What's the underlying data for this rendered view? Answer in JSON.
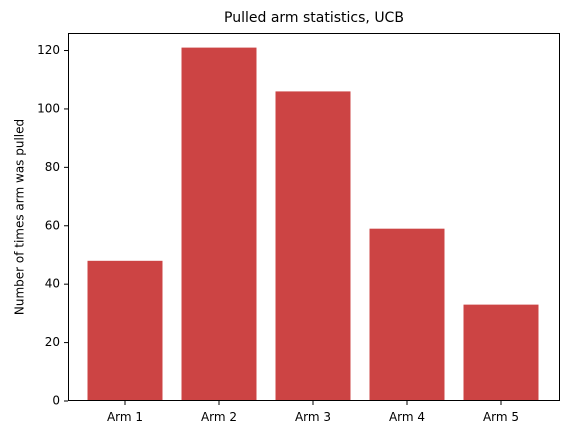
{
  "chart_data": {
    "type": "bar",
    "title": "Pulled arm statistics, UCB",
    "xlabel": "",
    "ylabel": "Number of times arm was pulled",
    "categories": [
      "Arm 1",
      "Arm 2",
      "Arm 3",
      "Arm 4",
      "Arm 5"
    ],
    "values": [
      48,
      121,
      106,
      59,
      33
    ],
    "ylim": [
      0,
      126
    ],
    "yticks": [
      0,
      20,
      40,
      60,
      80,
      100,
      120
    ],
    "bar_color": "#cc4444",
    "grid": false,
    "legend": "none"
  }
}
